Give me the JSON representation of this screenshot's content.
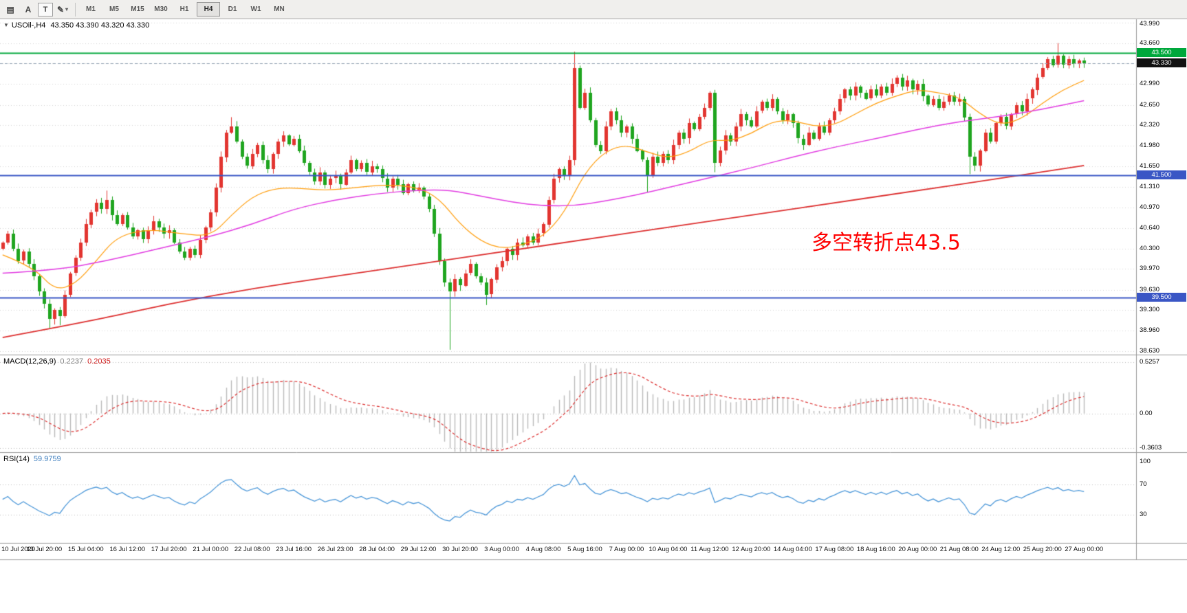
{
  "colors": {
    "up": "#e23530",
    "down": "#1fa51f",
    "grid": "#d6d6d6",
    "level_dash": "#bdbdbd",
    "hline_green": "#00a83c",
    "hline_blue": "#3a56c5",
    "ma_fast": "#ff9d0a",
    "ma_mid": "#e23ce2",
    "ma_slow": "#dd2f2f",
    "macd_hist": "#b9b9b9",
    "macd_signal": "#dd2f2f",
    "rsi": "#4a97d9",
    "bid_line": "#97a6b6",
    "badge_current": "#111111",
    "annotation": "#ff0000"
  },
  "toolbar": {
    "tools": [
      {
        "name": "charts-grid",
        "glyph": "▤"
      },
      {
        "name": "cursor",
        "glyph": "A"
      },
      {
        "name": "text-tool",
        "glyph": "T",
        "boxed": true
      },
      {
        "name": "draw-tool",
        "glyph": "✎",
        "caret": true
      }
    ],
    "timeframes": [
      "M1",
      "M5",
      "M15",
      "M30",
      "H1",
      "H4",
      "D1",
      "W1",
      "MN"
    ],
    "active_timeframe": "H4"
  },
  "main_pane": {
    "collapse_icon": "▼",
    "header_symbol": "USOil-,H4",
    "header_ohlc": "43.350 43.390 43.320 43.330",
    "price_ticks": [
      "43.990",
      "43.660",
      "43.330",
      "42.990",
      "42.650",
      "42.320",
      "41.980",
      "41.650",
      "41.310",
      "40.970",
      "40.640",
      "40.300",
      "39.970",
      "39.630",
      "39.300",
      "38.960",
      "38.630"
    ],
    "annotation": {
      "text": "多空转折点43.5"
    },
    "hlines": [
      {
        "price": 43.5,
        "color": "#00a83c",
        "badge": "43.500"
      },
      {
        "price": 41.5,
        "color": "#3a56c5",
        "badge": "41.500"
      },
      {
        "price": 39.5,
        "color": "#3a56c5",
        "badge": "39.500"
      }
    ],
    "current_price": {
      "value": 43.33,
      "badge": "43.330"
    }
  },
  "chart_data": {
    "type": "candlestick",
    "symbol": "USOil-",
    "timeframe": "H4",
    "first_open": 40.3,
    "closes": [
      40.4,
      40.55,
      40.3,
      40.1,
      40.25,
      40.05,
      39.85,
      39.6,
      39.4,
      39.15,
      39.3,
      39.2,
      39.55,
      39.9,
      40.15,
      40.4,
      40.7,
      40.9,
      41.05,
      40.95,
      41.1,
      40.85,
      40.7,
      40.85,
      40.65,
      40.5,
      40.6,
      40.45,
      40.6,
      40.75,
      40.65,
      40.55,
      40.6,
      40.4,
      40.25,
      40.15,
      40.3,
      40.2,
      40.45,
      40.65,
      40.9,
      41.3,
      41.8,
      42.2,
      42.3,
      42.05,
      41.8,
      41.65,
      41.85,
      42.0,
      41.75,
      41.6,
      41.85,
      42.05,
      42.15,
      42.0,
      42.1,
      41.9,
      41.7,
      41.55,
      41.4,
      41.55,
      41.35,
      41.45,
      41.5,
      41.35,
      41.55,
      41.75,
      41.6,
      41.7,
      41.55,
      41.65,
      41.6,
      41.45,
      41.3,
      41.45,
      41.35,
      41.2,
      41.35,
      41.25,
      41.3,
      41.15,
      40.95,
      40.55,
      40.1,
      39.75,
      39.6,
      39.8,
      39.7,
      39.9,
      40.05,
      39.85,
      39.75,
      39.55,
      39.8,
      40.0,
      40.1,
      40.3,
      40.2,
      40.4,
      40.35,
      40.5,
      40.4,
      40.55,
      40.7,
      41.1,
      41.45,
      41.6,
      41.5,
      41.75,
      43.25,
      42.6,
      42.85,
      42.4,
      42.0,
      41.9,
      42.3,
      42.55,
      42.4,
      42.2,
      42.3,
      42.1,
      41.9,
      41.75,
      41.5,
      41.8,
      41.7,
      41.85,
      41.75,
      42.0,
      42.2,
      42.1,
      42.35,
      42.25,
      42.45,
      42.6,
      42.85,
      41.7,
      41.9,
      42.15,
      42.05,
      42.3,
      42.5,
      42.4,
      42.3,
      42.55,
      42.7,
      42.6,
      42.75,
      42.55,
      42.4,
      42.5,
      42.35,
      42.1,
      42.0,
      42.2,
      42.1,
      42.3,
      42.2,
      42.4,
      42.55,
      42.75,
      42.9,
      42.8,
      42.95,
      42.85,
      42.75,
      42.9,
      42.8,
      42.95,
      42.85,
      43.0,
      43.1,
      42.95,
      43.05,
      42.9,
      43.0,
      42.8,
      42.65,
      42.75,
      42.6,
      42.7,
      42.8,
      42.7,
      42.75,
      42.45,
      41.8,
      41.65,
      41.9,
      42.2,
      42.05,
      42.35,
      42.45,
      42.3,
      42.5,
      42.65,
      42.55,
      42.75,
      42.9,
      43.1,
      43.25,
      43.4,
      43.3,
      43.45,
      43.3,
      43.4,
      43.32,
      43.38,
      43.33
    ],
    "wick_overrides": {
      "9": {
        "low": 39.0
      },
      "11": {
        "low": 39.05
      },
      "20": {
        "high": 41.25
      },
      "44": {
        "high": 42.45
      },
      "86": {
        "low": 38.65
      },
      "93": {
        "low": 39.38
      },
      "110": {
        "high": 43.52
      },
      "124": {
        "low": 41.22
      },
      "137": {
        "low": 41.55
      },
      "186": {
        "low": 41.52
      },
      "203": {
        "high": 43.66
      }
    },
    "ma_lines": [
      {
        "name": "ma-fast-orange",
        "color": "#ff9d0a",
        "width": 1.2,
        "points": [
          [
            0,
            40.2
          ],
          [
            6,
            40.0
          ],
          [
            10,
            39.62
          ],
          [
            14,
            39.72
          ],
          [
            18,
            40.1
          ],
          [
            22,
            40.5
          ],
          [
            28,
            40.62
          ],
          [
            34,
            40.55
          ],
          [
            40,
            40.5
          ],
          [
            44,
            40.85
          ],
          [
            48,
            41.15
          ],
          [
            52,
            41.28
          ],
          [
            56,
            41.3
          ],
          [
            62,
            41.25
          ],
          [
            68,
            41.3
          ],
          [
            74,
            41.35
          ],
          [
            80,
            41.3
          ],
          [
            84,
            41.12
          ],
          [
            88,
            40.7
          ],
          [
            92,
            40.42
          ],
          [
            96,
            40.3
          ],
          [
            100,
            40.36
          ],
          [
            104,
            40.5
          ],
          [
            108,
            40.88
          ],
          [
            112,
            41.55
          ],
          [
            116,
            41.9
          ],
          [
            120,
            42.0
          ],
          [
            124,
            41.88
          ],
          [
            128,
            41.78
          ],
          [
            132,
            41.88
          ],
          [
            136,
            42.08
          ],
          [
            140,
            42.06
          ],
          [
            144,
            42.18
          ],
          [
            148,
            42.38
          ],
          [
            152,
            42.4
          ],
          [
            156,
            42.3
          ],
          [
            160,
            42.32
          ],
          [
            164,
            42.5
          ],
          [
            168,
            42.68
          ],
          [
            172,
            42.8
          ],
          [
            176,
            42.9
          ],
          [
            180,
            42.85
          ],
          [
            184,
            42.78
          ],
          [
            188,
            42.5
          ],
          [
            192,
            42.32
          ],
          [
            196,
            42.42
          ],
          [
            200,
            42.68
          ],
          [
            204,
            42.9
          ],
          [
            208,
            43.05
          ]
        ]
      },
      {
        "name": "ma-mid-magenta",
        "color": "#e23ce2",
        "width": 1.5,
        "points": [
          [
            0,
            39.9
          ],
          [
            10,
            39.95
          ],
          [
            20,
            40.1
          ],
          [
            30,
            40.3
          ],
          [
            40,
            40.5
          ],
          [
            48,
            40.7
          ],
          [
            56,
            40.95
          ],
          [
            64,
            41.1
          ],
          [
            72,
            41.2
          ],
          [
            80,
            41.26
          ],
          [
            86,
            41.26
          ],
          [
            92,
            41.16
          ],
          [
            98,
            41.06
          ],
          [
            104,
            41.0
          ],
          [
            110,
            41.0
          ],
          [
            116,
            41.08
          ],
          [
            122,
            41.18
          ],
          [
            128,
            41.3
          ],
          [
            136,
            41.46
          ],
          [
            144,
            41.62
          ],
          [
            152,
            41.8
          ],
          [
            160,
            41.96
          ],
          [
            168,
            42.1
          ],
          [
            176,
            42.25
          ],
          [
            184,
            42.38
          ],
          [
            192,
            42.46
          ],
          [
            200,
            42.58
          ],
          [
            208,
            42.72
          ]
        ]
      },
      {
        "name": "ma-slow-red",
        "color": "#dd2f2f",
        "width": 1.8,
        "points": [
          [
            0,
            38.85
          ],
          [
            16,
            39.1
          ],
          [
            32,
            39.4
          ],
          [
            48,
            39.65
          ],
          [
            64,
            39.85
          ],
          [
            80,
            40.05
          ],
          [
            96,
            40.25
          ],
          [
            112,
            40.45
          ],
          [
            128,
            40.65
          ],
          [
            144,
            40.85
          ],
          [
            160,
            41.05
          ],
          [
            176,
            41.25
          ],
          [
            192,
            41.45
          ],
          [
            208,
            41.66
          ]
        ]
      }
    ],
    "time_labels": [
      "10 Jul 2020",
      "13 Jul 20:00",
      "15 Jul 04:00",
      "16 Jul 12:00",
      "17 Jul 20:00",
      "21 Jul 00:00",
      "22 Jul 08:00",
      "23 Jul 16:00",
      "26 Jul 23:00",
      "28 Jul 04:00",
      "29 Jul 12:00",
      "30 Jul 20:00",
      "3 Aug 00:00",
      "4 Aug 08:00",
      "5 Aug 16:00",
      "7 Aug 00:00",
      "10 Aug 04:00",
      "11 Aug 12:00",
      "12 Aug 20:00",
      "14 Aug 04:00",
      "17 Aug 08:00",
      "18 Aug 16:00",
      "20 Aug 00:00",
      "21 Aug 08:00",
      "24 Aug 12:00",
      "25 Aug 20:00",
      "27 Aug 00:00"
    ],
    "macd": {
      "header": "MACD(12,26,9)",
      "main": "0.2237",
      "signal": "0.2035",
      "axis": [
        "0.5257",
        "0.00",
        "-0.3603"
      ]
    },
    "rsi": {
      "header": "RSI(14)",
      "value": "59.9759",
      "levels": [
        70,
        30
      ],
      "axis": [
        "100",
        "70",
        "30"
      ]
    }
  }
}
